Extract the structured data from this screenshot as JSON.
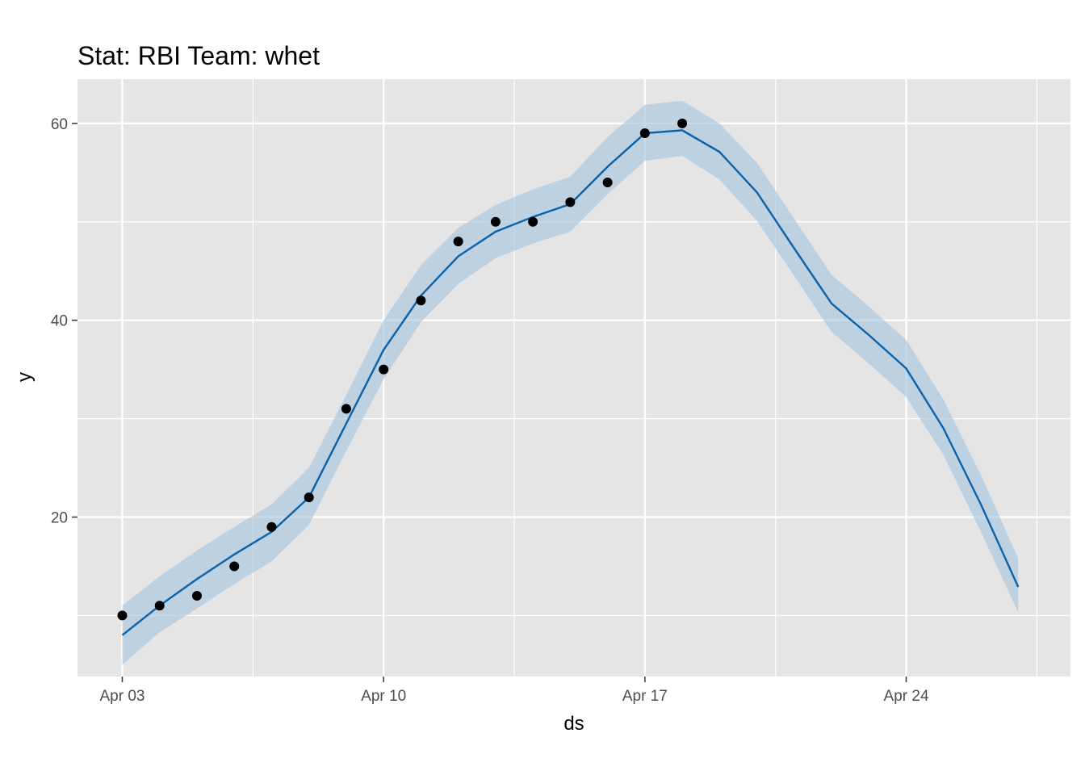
{
  "chart_data": {
    "type": "line",
    "title": "Stat: RBI Team: whet",
    "xlabel": "ds",
    "ylabel": "y",
    "x_ticks": [
      {
        "day": 0,
        "label": "Apr 03"
      },
      {
        "day": 7,
        "label": "Apr 10"
      },
      {
        "day": 14,
        "label": "Apr 17"
      },
      {
        "day": 21,
        "label": "Apr 24"
      }
    ],
    "y_ticks": [
      20,
      40,
      60
    ],
    "xlim": [
      -1.2,
      25.4
    ],
    "ylim": [
      3.8,
      64.5
    ],
    "colors": {
      "panel_bg": "#e5e5e5",
      "grid": "#ffffff",
      "forecast_line": "#0b62a9",
      "interval_fill": "#a8c6df",
      "points": "#000000"
    },
    "series": [
      {
        "name": "actual",
        "kind": "points",
        "x": [
          0,
          1,
          2,
          3,
          4,
          5,
          6,
          7,
          8,
          9,
          10,
          11,
          12,
          13,
          14,
          15
        ],
        "values": [
          10,
          11,
          12,
          15,
          19,
          22,
          31,
          35,
          42,
          48,
          50,
          50,
          52,
          54,
          59,
          60
        ]
      },
      {
        "name": "forecast",
        "kind": "line",
        "x": [
          0,
          1,
          2,
          3,
          4,
          5,
          6,
          7,
          8,
          9,
          10,
          11,
          12,
          13,
          14,
          15,
          16,
          17,
          18,
          19,
          20,
          21,
          22,
          23,
          24
        ],
        "values": [
          8.0,
          11.0,
          13.7,
          16.2,
          18.5,
          22.0,
          29.5,
          37.0,
          42.5,
          46.5,
          49.0,
          50.5,
          51.8,
          55.6,
          59.0,
          59.3,
          57.1,
          53.0,
          47.3,
          41.7,
          38.5,
          35.1,
          29.0,
          21.3,
          12.9
        ],
        "lower": [
          5.0,
          8.3,
          10.7,
          13.2,
          15.5,
          19.2,
          26.7,
          34.0,
          39.8,
          43.7,
          46.3,
          47.8,
          49.0,
          52.8,
          56.2,
          56.7,
          54.3,
          50.1,
          44.5,
          38.8,
          35.6,
          32.2,
          26.3,
          18.5,
          10.3
        ],
        "upper": [
          11.0,
          14.0,
          16.6,
          19.0,
          21.3,
          25.0,
          32.4,
          40.0,
          45.6,
          49.4,
          51.7,
          53.3,
          54.6,
          58.6,
          61.9,
          62.3,
          60.0,
          56.0,
          50.3,
          44.6,
          41.4,
          38.0,
          31.9,
          24.3,
          15.8
        ]
      }
    ]
  }
}
